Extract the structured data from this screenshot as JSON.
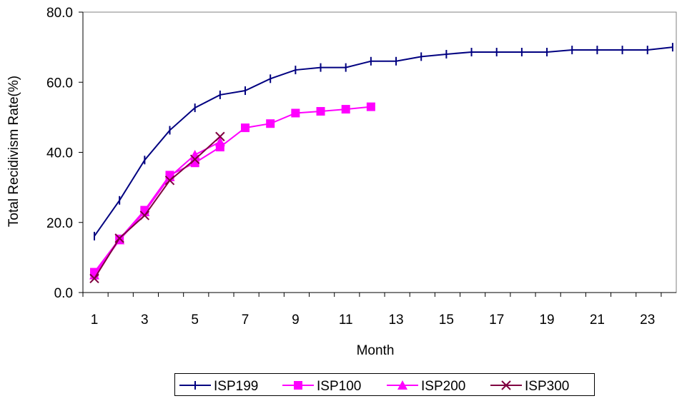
{
  "chart_data": {
    "type": "line",
    "title": "",
    "xlabel": "Month",
    "ylabel": "Total Recidivism Rate(%)",
    "ylim": [
      0,
      80
    ],
    "xlim": [
      1,
      24
    ],
    "y_ticks": [
      "0.0",
      "20.0",
      "40.0",
      "60.0",
      "80.0"
    ],
    "x_ticks": [
      1,
      3,
      5,
      7,
      9,
      11,
      13,
      15,
      17,
      19,
      21,
      23
    ],
    "grid": false,
    "legend_position": "bottom",
    "series": [
      {
        "name": "ISP199",
        "color": "#000080",
        "marker": "plus",
        "x": [
          1,
          2,
          3,
          4,
          5,
          6,
          7,
          8,
          9,
          10,
          11,
          12,
          13,
          14,
          15,
          16,
          17,
          18,
          19,
          20,
          21,
          22,
          23,
          24
        ],
        "values": [
          16.1,
          26.3,
          37.8,
          46.3,
          52.7,
          56.4,
          57.6,
          61.0,
          63.5,
          64.2,
          64.2,
          66.0,
          66.0,
          67.3,
          68.0,
          68.6,
          68.6,
          68.6,
          68.6,
          69.2,
          69.2,
          69.2,
          69.2,
          70.0
        ]
      },
      {
        "name": "ISP100",
        "color": "#FF00FF",
        "marker": "square",
        "x": [
          1,
          2,
          3,
          4,
          5,
          6,
          7,
          8,
          9,
          10,
          11,
          12
        ],
        "values": [
          5.8,
          15.3,
          23.5,
          33.5,
          37.0,
          41.5,
          47.0,
          48.2,
          51.2,
          51.7,
          52.3,
          53.0
        ]
      },
      {
        "name": "ISP200",
        "color": "#FF00FF",
        "marker": "triangle",
        "x": [
          1,
          2,
          3,
          4,
          5,
          6
        ],
        "values": [
          5.0,
          15.0,
          23.0,
          33.0,
          39.3,
          43.0
        ]
      },
      {
        "name": "ISP300",
        "color": "#800040",
        "marker": "x",
        "x": [
          1,
          2,
          3,
          4,
          5,
          6
        ],
        "values": [
          4.0,
          15.5,
          22.0,
          32.0,
          38.0,
          44.5
        ]
      }
    ]
  }
}
